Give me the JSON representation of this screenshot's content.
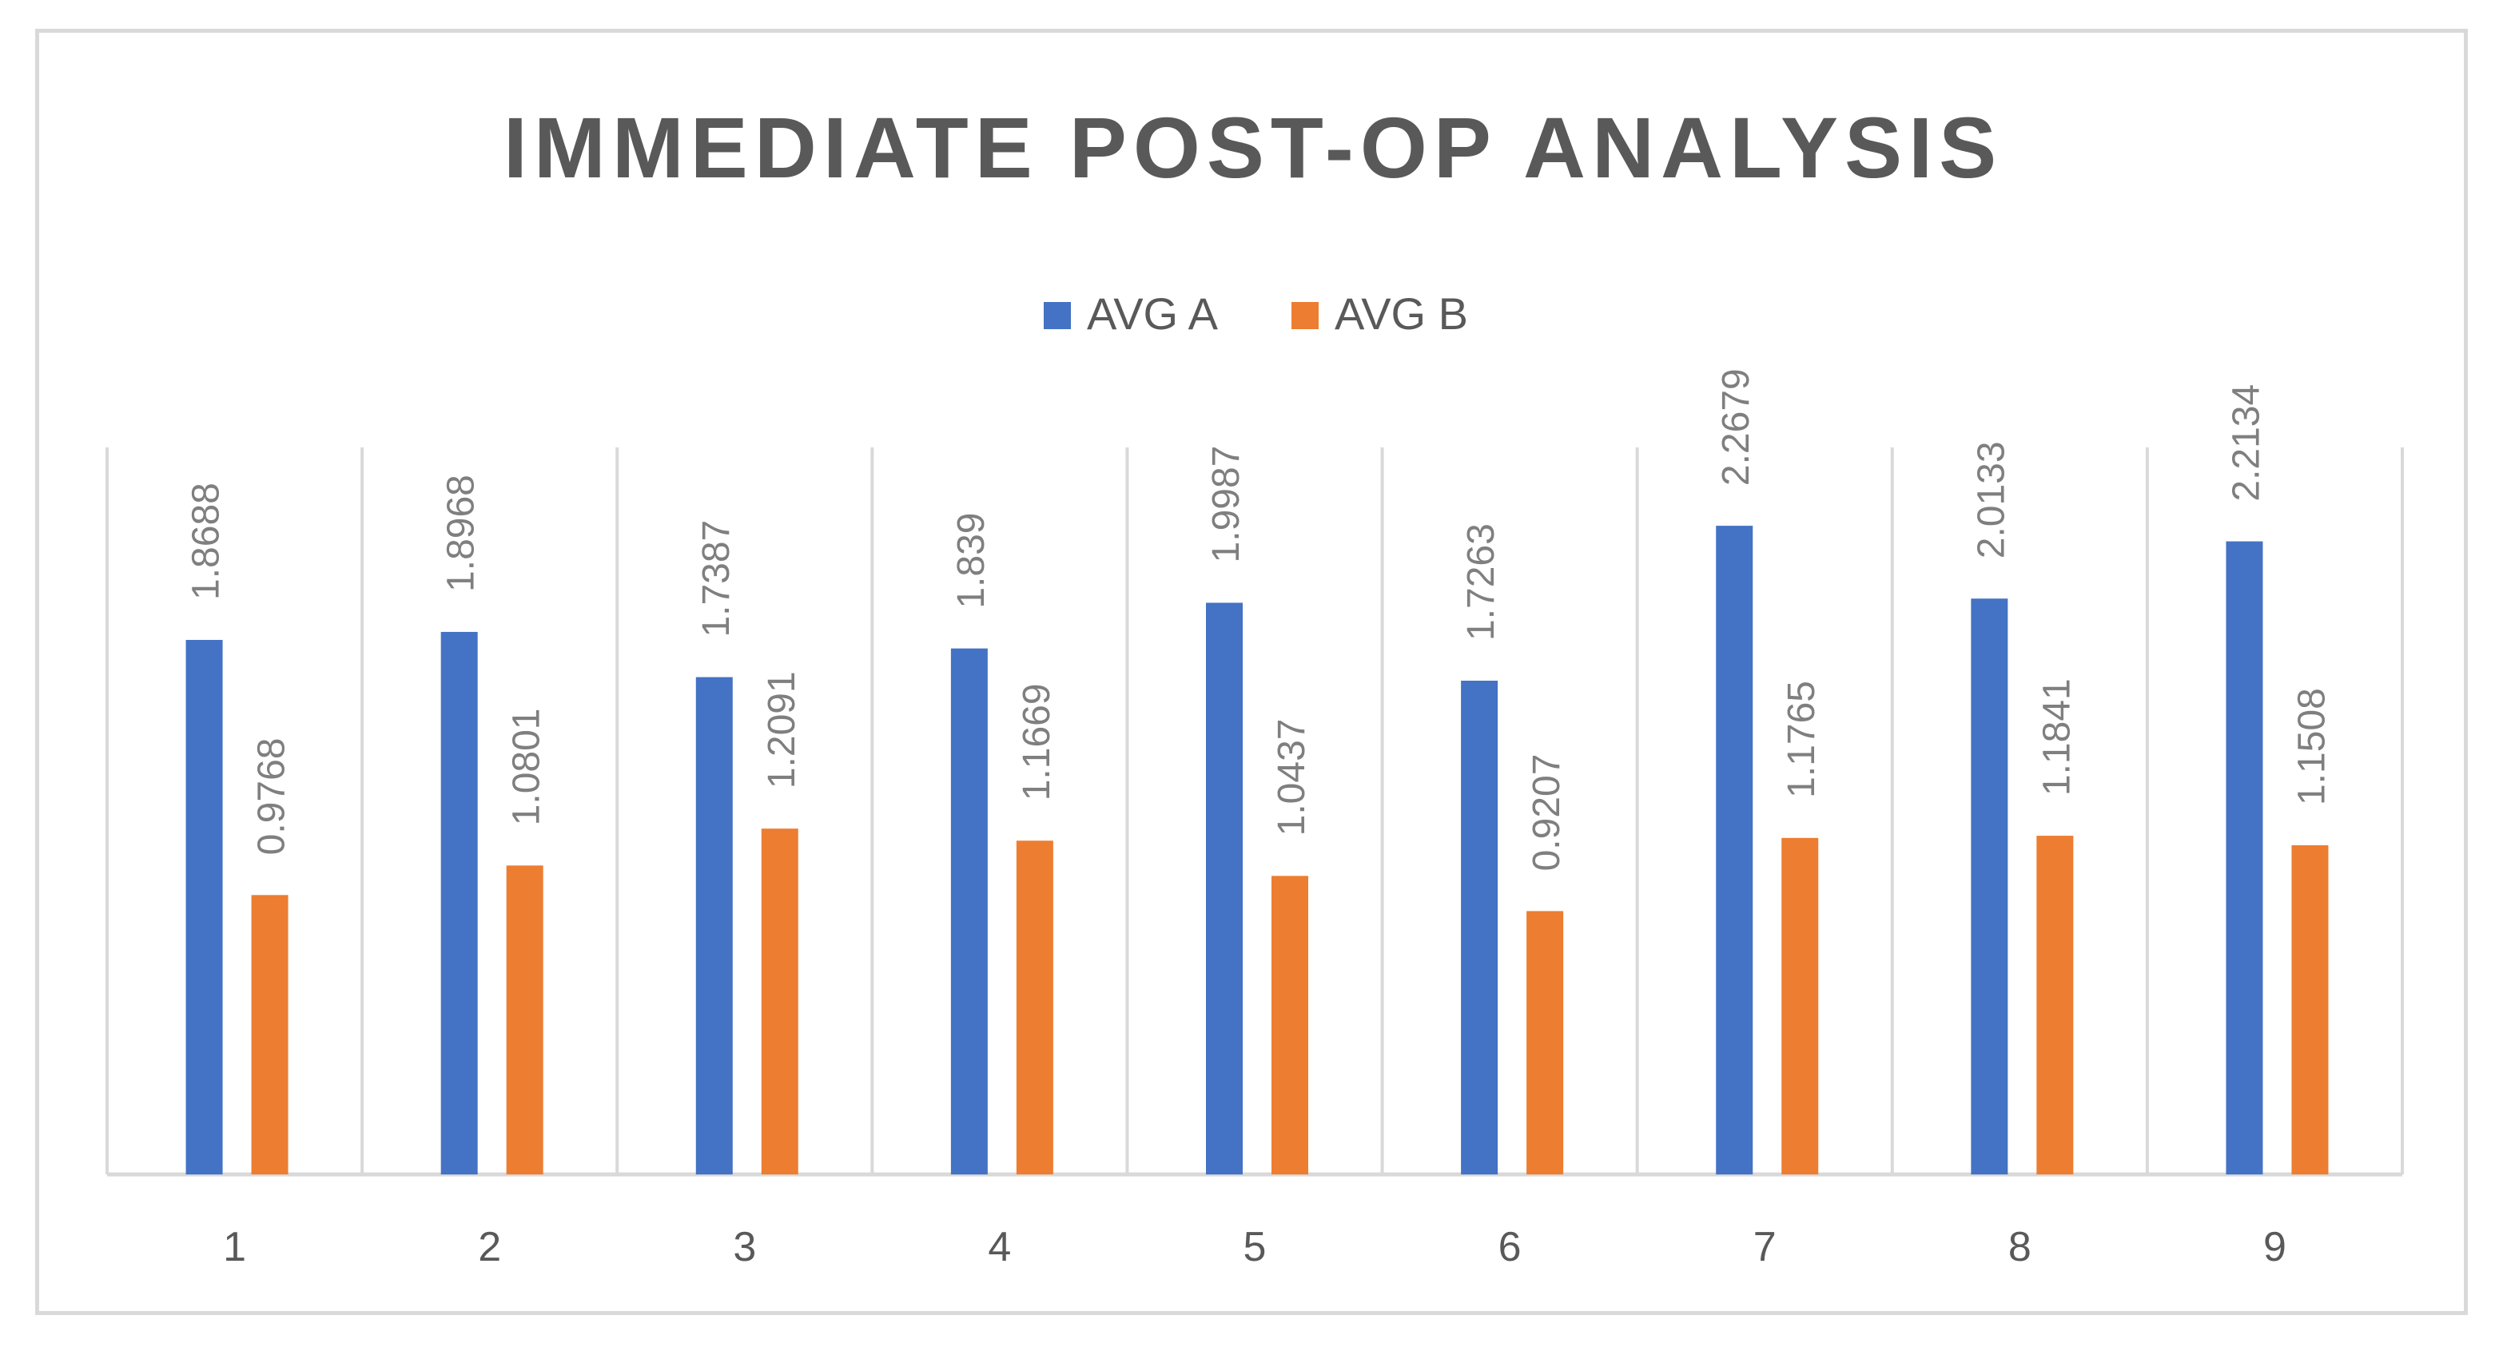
{
  "chart_data": {
    "type": "bar",
    "title": "IMMEDIATE POST-OP ANALYSIS",
    "xlabel": "",
    "ylabel": "",
    "categories": [
      "1",
      "2",
      "3",
      "4",
      "5",
      "6",
      "7",
      "8",
      "9"
    ],
    "series": [
      {
        "name": "AVG A",
        "color": "#4472c4",
        "values": [
          1.8688,
          1.8968,
          1.7387,
          1.839,
          1.9987,
          1.7263,
          2.2679,
          2.0133,
          2.2134
        ],
        "labels": [
          "1.8688",
          "1.8968",
          "1.7387",
          "1.839",
          "1.9987",
          "1.7263",
          "2.2679",
          "2.0133",
          "2.2134"
        ]
      },
      {
        "name": "AVG B",
        "color": "#ed7d31",
        "values": [
          0.9768,
          1.0801,
          1.2091,
          1.1669,
          1.0437,
          0.9207,
          1.1765,
          1.1841,
          1.1508
        ],
        "labels": [
          "0.9768",
          "1.0801",
          "1.2091",
          "1.1669",
          "1.0437",
          "0.9207",
          "1.1765",
          "1.1841",
          "1.1508"
        ]
      }
    ],
    "ylim": [
      0,
      2.5
    ],
    "grid": "vertical category separators",
    "legend": "top-center",
    "text_color": "#595959",
    "label_color": "#7f7f7f",
    "grid_color": "#d9d9d9"
  }
}
